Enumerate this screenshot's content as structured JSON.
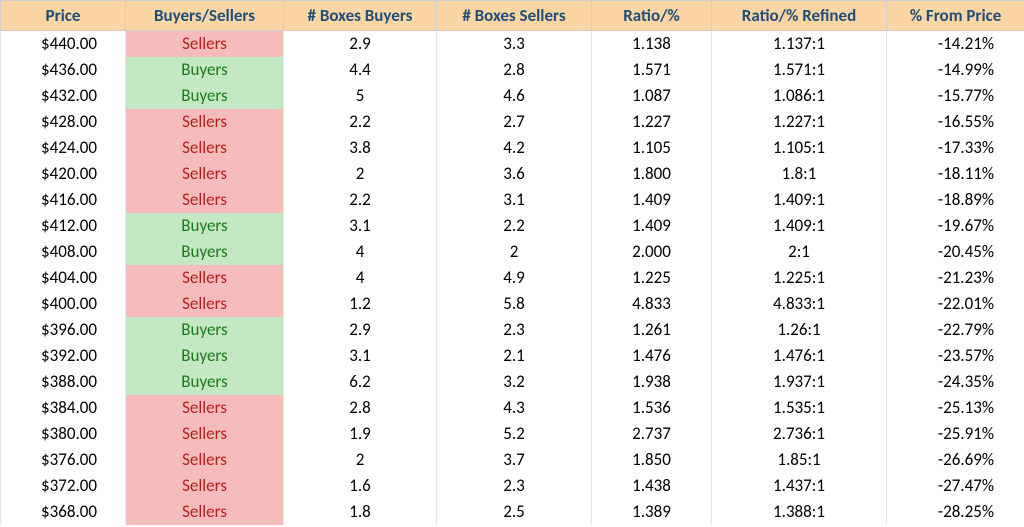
{
  "table": {
    "header_bg": "#fcd5a4",
    "header_fg": "#1f4e79",
    "buyers_bg": "#c3e8c3",
    "buyers_fg": "#1b7a1b",
    "sellers_bg": "#f5bcbc",
    "sellers_fg": "#b42020",
    "columns": [
      "Price",
      "Buyers/Sellers",
      "# Boxes Buyers",
      "# Boxes Sellers",
      "Ratio/%",
      "Ratio/% Refined",
      "% From Price"
    ],
    "rows": [
      {
        "price": "$440.00",
        "bs": "Sellers",
        "bb": "2.9",
        "sb": "3.3",
        "ratio": "1.138",
        "refined": "1.137:1",
        "pct": "-14.21%"
      },
      {
        "price": "$436.00",
        "bs": "Buyers",
        "bb": "4.4",
        "sb": "2.8",
        "ratio": "1.571",
        "refined": "1.571:1",
        "pct": "-14.99%"
      },
      {
        "price": "$432.00",
        "bs": "Buyers",
        "bb": "5",
        "sb": "4.6",
        "ratio": "1.087",
        "refined": "1.086:1",
        "pct": "-15.77%"
      },
      {
        "price": "$428.00",
        "bs": "Sellers",
        "bb": "2.2",
        "sb": "2.7",
        "ratio": "1.227",
        "refined": "1.227:1",
        "pct": "-16.55%"
      },
      {
        "price": "$424.00",
        "bs": "Sellers",
        "bb": "3.8",
        "sb": "4.2",
        "ratio": "1.105",
        "refined": "1.105:1",
        "pct": "-17.33%"
      },
      {
        "price": "$420.00",
        "bs": "Sellers",
        "bb": "2",
        "sb": "3.6",
        "ratio": "1.800",
        "refined": "1.8:1",
        "pct": "-18.11%"
      },
      {
        "price": "$416.00",
        "bs": "Sellers",
        "bb": "2.2",
        "sb": "3.1",
        "ratio": "1.409",
        "refined": "1.409:1",
        "pct": "-18.89%"
      },
      {
        "price": "$412.00",
        "bs": "Buyers",
        "bb": "3.1",
        "sb": "2.2",
        "ratio": "1.409",
        "refined": "1.409:1",
        "pct": "-19.67%"
      },
      {
        "price": "$408.00",
        "bs": "Buyers",
        "bb": "4",
        "sb": "2",
        "ratio": "2.000",
        "refined": "2:1",
        "pct": "-20.45%"
      },
      {
        "price": "$404.00",
        "bs": "Sellers",
        "bb": "4",
        "sb": "4.9",
        "ratio": "1.225",
        "refined": "1.225:1",
        "pct": "-21.23%"
      },
      {
        "price": "$400.00",
        "bs": "Sellers",
        "bb": "1.2",
        "sb": "5.8",
        "ratio": "4.833",
        "refined": "4.833:1",
        "pct": "-22.01%"
      },
      {
        "price": "$396.00",
        "bs": "Buyers",
        "bb": "2.9",
        "sb": "2.3",
        "ratio": "1.261",
        "refined": "1.26:1",
        "pct": "-22.79%"
      },
      {
        "price": "$392.00",
        "bs": "Buyers",
        "bb": "3.1",
        "sb": "2.1",
        "ratio": "1.476",
        "refined": "1.476:1",
        "pct": "-23.57%"
      },
      {
        "price": "$388.00",
        "bs": "Buyers",
        "bb": "6.2",
        "sb": "3.2",
        "ratio": "1.938",
        "refined": "1.937:1",
        "pct": "-24.35%"
      },
      {
        "price": "$384.00",
        "bs": "Sellers",
        "bb": "2.8",
        "sb": "4.3",
        "ratio": "1.536",
        "refined": "1.535:1",
        "pct": "-25.13%"
      },
      {
        "price": "$380.00",
        "bs": "Sellers",
        "bb": "1.9",
        "sb": "5.2",
        "ratio": "2.737",
        "refined": "2.736:1",
        "pct": "-25.91%"
      },
      {
        "price": "$376.00",
        "bs": "Sellers",
        "bb": "2",
        "sb": "3.7",
        "ratio": "1.850",
        "refined": "1.85:1",
        "pct": "-26.69%"
      },
      {
        "price": "$372.00",
        "bs": "Sellers",
        "bb": "1.6",
        "sb": "2.3",
        "ratio": "1.438",
        "refined": "1.437:1",
        "pct": "-27.47%"
      },
      {
        "price": "$368.00",
        "bs": "Sellers",
        "bb": "1.8",
        "sb": "2.5",
        "ratio": "1.389",
        "refined": "1.388:1",
        "pct": "-28.25%"
      }
    ]
  }
}
